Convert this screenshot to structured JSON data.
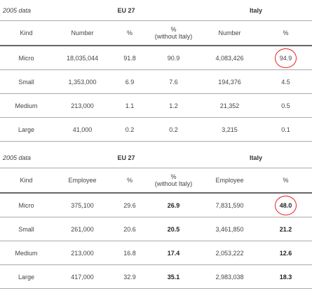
{
  "tables": [
    {
      "header": {
        "title": "2005 data",
        "group1": "EU 27",
        "group2": "Italy"
      },
      "columns": [
        "Kind",
        "Number",
        "%",
        "%\n(without Italy)",
        "Number",
        "%"
      ],
      "rows": [
        [
          "Micro",
          "18,035,044",
          "91.8",
          "90.9",
          "4,083,426",
          "94.9"
        ],
        [
          "Small",
          "1,353,000",
          "6.9",
          "7.6",
          "194,376",
          "4.5"
        ],
        [
          "Medium",
          "213,000",
          "1.1",
          "1.2",
          "21,352",
          "0.5"
        ],
        [
          "Large",
          "41,000",
          "0.2",
          "0.2",
          "3,215",
          "0.1"
        ]
      ]
    },
    {
      "header": {
        "title": "2005 data",
        "group1": "EU 27",
        "group2": "Italy"
      },
      "columns": [
        "Kind",
        "Employee",
        "%",
        "%\n(without Italy)",
        "Employee",
        "%"
      ],
      "rows": [
        [
          "Micro",
          "375,100",
          "29.6",
          "26.9",
          "7,831,590",
          "48.0"
        ],
        [
          "Small",
          "261,000",
          "20.6",
          "20.5",
          "3,461,850",
          "21.2"
        ],
        [
          "Medium",
          "213,000",
          "16.8",
          "17.4",
          "2,053,222",
          "12.6"
        ],
        [
          "Large",
          "417,000",
          "32.9",
          "35.1",
          "2,983,038",
          "18.3"
        ]
      ]
    }
  ]
}
